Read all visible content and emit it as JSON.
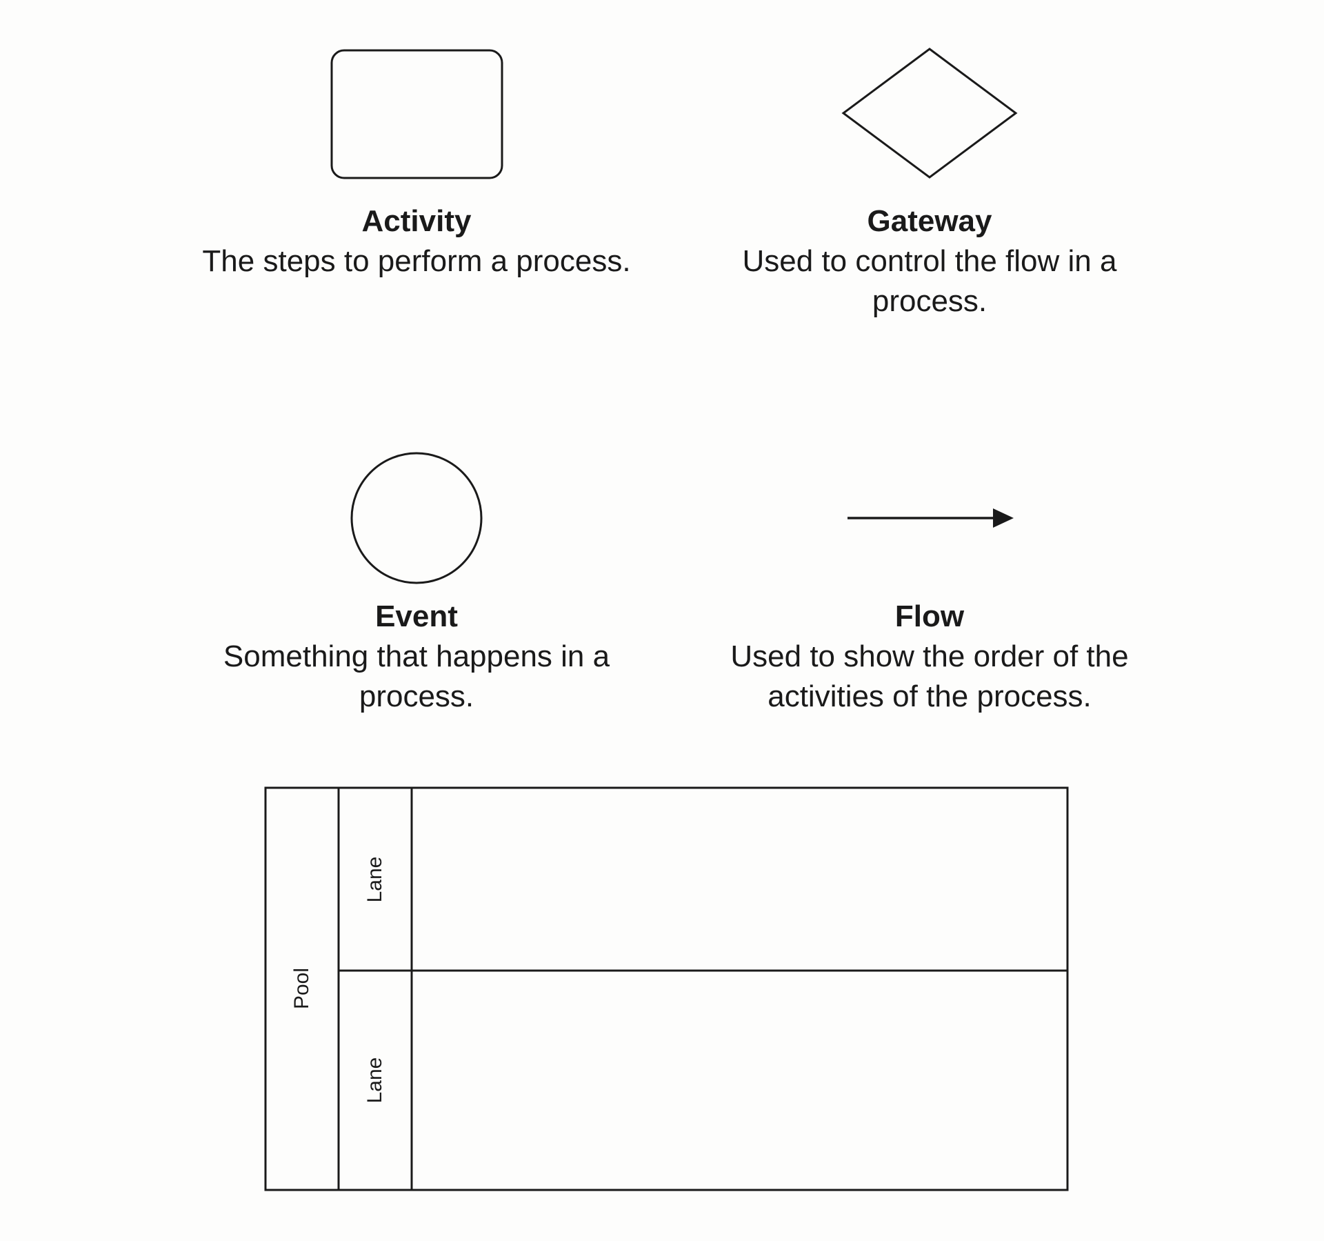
{
  "elements": [
    {
      "id": "activity",
      "title": "Activity",
      "description": "The steps to perform a process.",
      "icon": "rounded-rectangle"
    },
    {
      "id": "gateway",
      "title": "Gateway",
      "description": "Used to control the flow in a process.",
      "icon": "diamond"
    },
    {
      "id": "event",
      "title": "Event",
      "description": "Something that happens in a process.",
      "icon": "circle"
    },
    {
      "id": "flow",
      "title": "Flow",
      "description": "Used to show the order of the activities of the process.",
      "icon": "arrow"
    }
  ],
  "pool": {
    "label": "Pool",
    "lanes": [
      {
        "label": "Lane"
      },
      {
        "label": "Lane"
      }
    ]
  },
  "colors": {
    "stroke": "#1a1a1a",
    "background": "#fdfdfc"
  }
}
